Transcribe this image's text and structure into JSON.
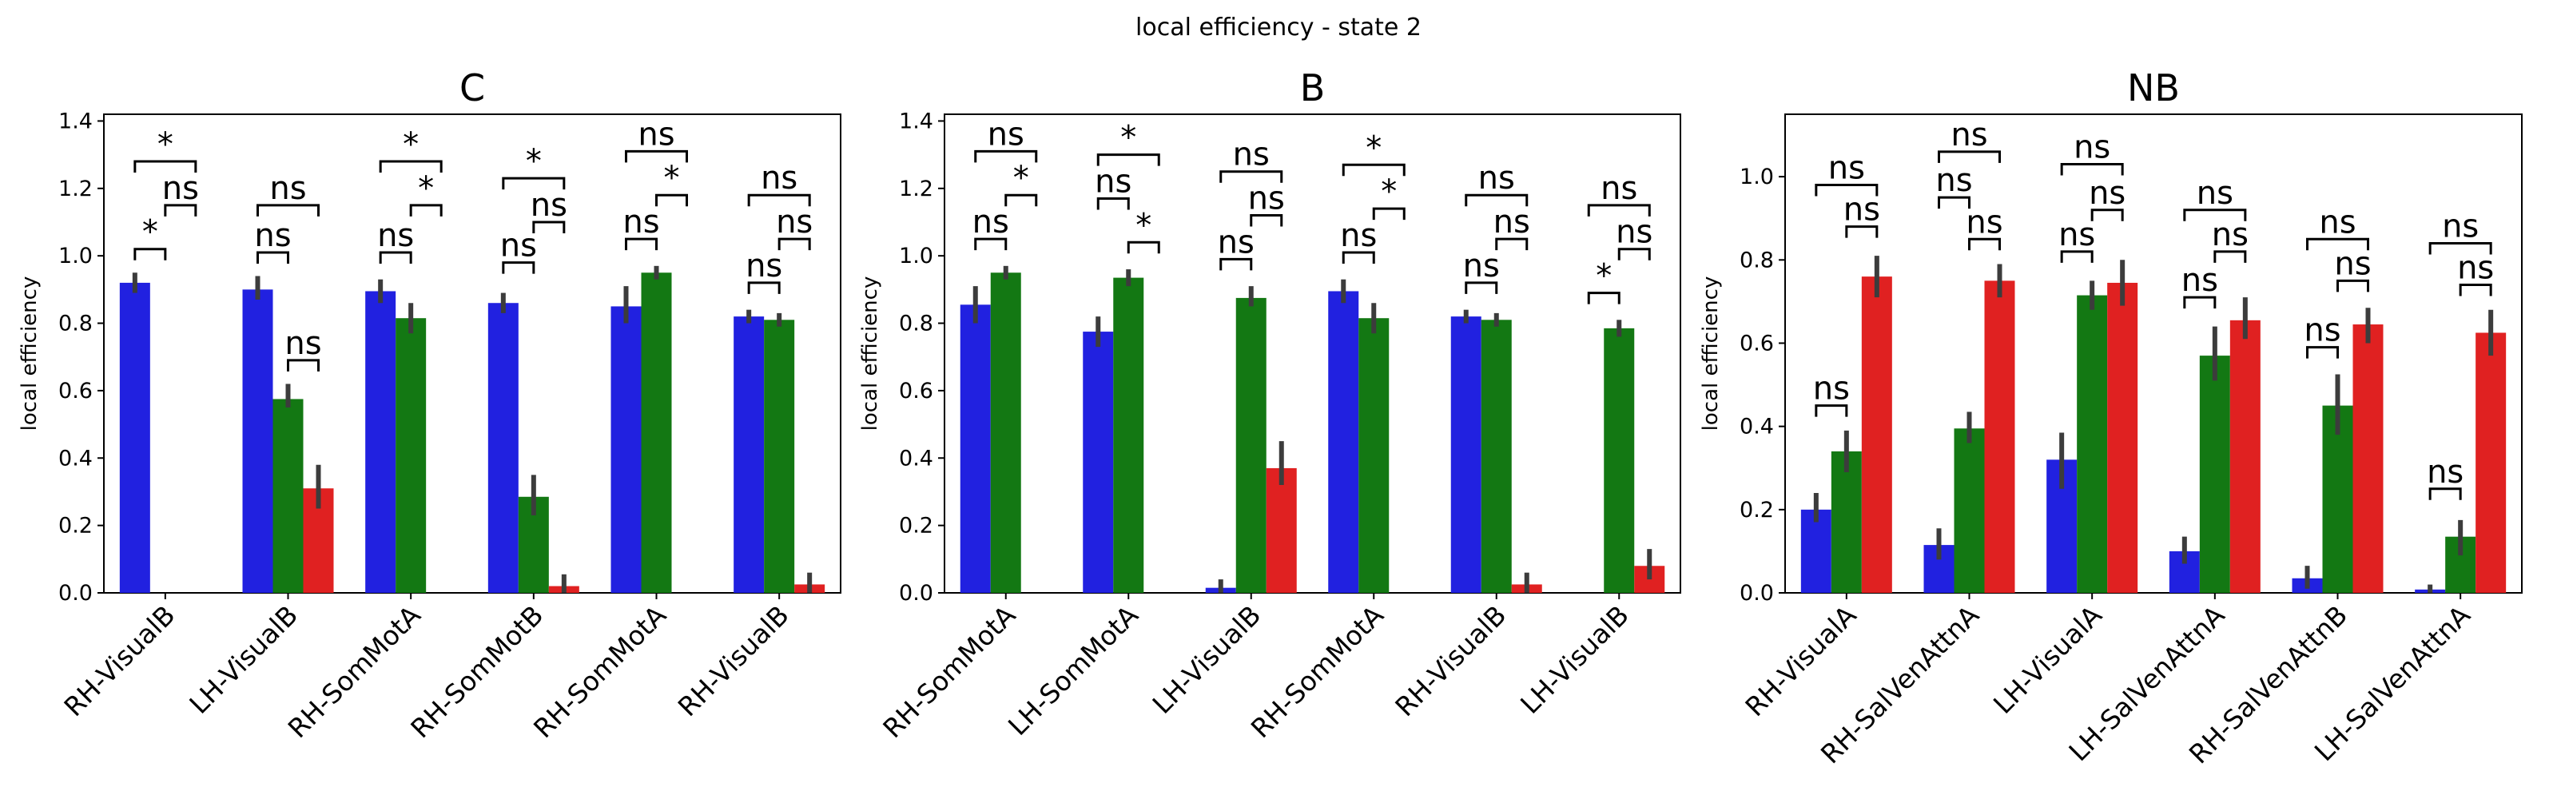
{
  "suptitle": "local efficiency - state 2",
  "colors": {
    "blue": "#2121e0",
    "green": "#137813",
    "red": "#e02121",
    "errbar": "#3c3c3c"
  },
  "chart_data": [
    {
      "type": "bar",
      "title": "C",
      "ylabel": "local efficiency",
      "xlabel": "",
      "ylim": [
        0,
        1.42
      ],
      "yticks": [
        "0.0",
        "0.2",
        "0.4",
        "0.6",
        "0.8",
        "1.0",
        "1.2",
        "1.4"
      ],
      "categories": [
        "RH-VisualB",
        "LH-VisualB",
        "RH-SomMotA",
        "RH-SomMotB",
        "RH-SomMotA",
        "RH-VisualB"
      ],
      "series": [
        {
          "color": "blue",
          "values": [
            0.92,
            0.9,
            0.895,
            0.86,
            0.85,
            0.82
          ],
          "err": [
            [
              0.89,
              0.95
            ],
            [
              0.87,
              0.94
            ],
            [
              0.86,
              0.93
            ],
            [
              0.83,
              0.89
            ],
            [
              0.8,
              0.91
            ],
            [
              0.8,
              0.84
            ]
          ]
        },
        {
          "color": "green",
          "values": [
            null,
            0.575,
            0.815,
            0.285,
            0.95,
            0.81
          ],
          "err": [
            null,
            [
              0.55,
              0.62
            ],
            [
              0.77,
              0.86
            ],
            [
              0.23,
              0.35
            ],
            [
              0.93,
              0.97
            ],
            [
              0.79,
              0.83
            ]
          ]
        },
        {
          "color": "red",
          "values": [
            null,
            0.31,
            null,
            0.02,
            null,
            0.025
          ],
          "err": [
            null,
            [
              0.25,
              0.38
            ],
            null,
            [
              0.0,
              0.055
            ],
            null,
            [
              0.0,
              0.06
            ]
          ]
        }
      ],
      "annotations": [
        {
          "cat": 0,
          "from": 0,
          "to": 1,
          "y": 1.02,
          "text": "*"
        },
        {
          "cat": 0,
          "from": 1,
          "to": 2,
          "y": 1.15,
          "text": "ns"
        },
        {
          "cat": 0,
          "from": 0,
          "to": 2,
          "y": 1.28,
          "text": "*"
        },
        {
          "cat": 1,
          "from": 0,
          "to": 1,
          "y": 1.01,
          "text": "ns"
        },
        {
          "cat": 1,
          "from": 1,
          "to": 2,
          "y": 0.69,
          "text": "ns"
        },
        {
          "cat": 1,
          "from": 0,
          "to": 2,
          "y": 1.15,
          "text": "ns"
        },
        {
          "cat": 2,
          "from": 0,
          "to": 1,
          "y": 1.01,
          "text": "ns"
        },
        {
          "cat": 2,
          "from": 1,
          "to": 2,
          "y": 1.15,
          "text": "*"
        },
        {
          "cat": 2,
          "from": 0,
          "to": 2,
          "y": 1.28,
          "text": "*"
        },
        {
          "cat": 3,
          "from": 0,
          "to": 1,
          "y": 0.98,
          "text": "ns"
        },
        {
          "cat": 3,
          "from": 1,
          "to": 2,
          "y": 1.1,
          "text": "ns"
        },
        {
          "cat": 3,
          "from": 0,
          "to": 2,
          "y": 1.23,
          "text": "*"
        },
        {
          "cat": 4,
          "from": 0,
          "to": 1,
          "y": 1.05,
          "text": "ns"
        },
        {
          "cat": 4,
          "from": 1,
          "to": 2,
          "y": 1.18,
          "text": "*"
        },
        {
          "cat": 4,
          "from": 0,
          "to": 2,
          "y": 1.31,
          "text": "ns"
        },
        {
          "cat": 5,
          "from": 0,
          "to": 1,
          "y": 0.92,
          "text": "ns"
        },
        {
          "cat": 5,
          "from": 1,
          "to": 2,
          "y": 1.05,
          "text": "ns"
        },
        {
          "cat": 5,
          "from": 0,
          "to": 2,
          "y": 1.18,
          "text": "ns"
        }
      ]
    },
    {
      "type": "bar",
      "title": "B",
      "ylabel": "local efficiency",
      "xlabel": "",
      "ylim": [
        0,
        1.42
      ],
      "yticks": [
        "0.0",
        "0.2",
        "0.4",
        "0.6",
        "0.8",
        "1.0",
        "1.2",
        "1.4"
      ],
      "categories": [
        "RH-SomMotA",
        "LH-SomMotA",
        "LH-VisualB",
        "RH-SomMotA",
        "RH-VisualB",
        "LH-VisualB"
      ],
      "series": [
        {
          "color": "blue",
          "values": [
            0.855,
            0.775,
            0.015,
            0.895,
            0.82,
            null
          ],
          "err": [
            [
              0.8,
              0.91
            ],
            [
              0.73,
              0.82
            ],
            [
              0.0,
              0.04
            ],
            [
              0.86,
              0.93
            ],
            [
              0.8,
              0.84
            ],
            null
          ]
        },
        {
          "color": "green",
          "values": [
            0.95,
            0.935,
            0.875,
            0.815,
            0.81,
            0.785
          ],
          "err": [
            [
              0.93,
              0.97
            ],
            [
              0.91,
              0.96
            ],
            [
              0.85,
              0.91
            ],
            [
              0.77,
              0.86
            ],
            [
              0.79,
              0.83
            ],
            [
              0.76,
              0.81
            ]
          ]
        },
        {
          "color": "red",
          "values": [
            null,
            null,
            0.37,
            null,
            0.025,
            0.08
          ],
          "err": [
            null,
            null,
            [
              0.32,
              0.45
            ],
            null,
            [
              0.0,
              0.06
            ],
            [
              0.04,
              0.13
            ]
          ]
        }
      ],
      "annotations": [
        {
          "cat": 0,
          "from": 0,
          "to": 1,
          "y": 1.05,
          "text": "ns"
        },
        {
          "cat": 0,
          "from": 1,
          "to": 2,
          "y": 1.18,
          "text": "*"
        },
        {
          "cat": 0,
          "from": 0,
          "to": 2,
          "y": 1.31,
          "text": "ns"
        },
        {
          "cat": 1,
          "from": 0,
          "to": 1,
          "y": 1.17,
          "text": "ns"
        },
        {
          "cat": 1,
          "from": 1,
          "to": 2,
          "y": 1.04,
          "text": "*"
        },
        {
          "cat": 1,
          "from": 0,
          "to": 2,
          "y": 1.3,
          "text": "*"
        },
        {
          "cat": 2,
          "from": 0,
          "to": 1,
          "y": 0.99,
          "text": "ns"
        },
        {
          "cat": 2,
          "from": 1,
          "to": 2,
          "y": 1.12,
          "text": "ns"
        },
        {
          "cat": 2,
          "from": 0,
          "to": 2,
          "y": 1.25,
          "text": "ns"
        },
        {
          "cat": 3,
          "from": 0,
          "to": 1,
          "y": 1.01,
          "text": "ns"
        },
        {
          "cat": 3,
          "from": 1,
          "to": 2,
          "y": 1.14,
          "text": "*"
        },
        {
          "cat": 3,
          "from": 0,
          "to": 2,
          "y": 1.27,
          "text": "*"
        },
        {
          "cat": 4,
          "from": 0,
          "to": 1,
          "y": 0.92,
          "text": "ns"
        },
        {
          "cat": 4,
          "from": 1,
          "to": 2,
          "y": 1.05,
          "text": "ns"
        },
        {
          "cat": 4,
          "from": 0,
          "to": 2,
          "y": 1.18,
          "text": "ns"
        },
        {
          "cat": 5,
          "from": 0,
          "to": 1,
          "y": 0.89,
          "text": "*"
        },
        {
          "cat": 5,
          "from": 1,
          "to": 2,
          "y": 1.02,
          "text": "ns"
        },
        {
          "cat": 5,
          "from": 0,
          "to": 2,
          "y": 1.15,
          "text": "ns"
        }
      ]
    },
    {
      "type": "bar",
      "title": "NB",
      "ylabel": "local efficiency",
      "xlabel": "",
      "ylim": [
        0,
        1.15
      ],
      "yticks": [
        "0.0",
        "0.2",
        "0.4",
        "0.6",
        "0.8",
        "1.0"
      ],
      "categories": [
        "RH-VisualA",
        "RH-SalVenAttnA",
        "LH-VisualA",
        "LH-SalVenAttnA",
        "RH-SalVenAttnB",
        "LH-SalVenAttnA"
      ],
      "series": [
        {
          "color": "blue",
          "values": [
            0.2,
            0.115,
            0.32,
            0.1,
            0.035,
            0.008
          ],
          "err": [
            [
              0.17,
              0.24
            ],
            [
              0.08,
              0.155
            ],
            [
              0.25,
              0.385
            ],
            [
              0.07,
              0.135
            ],
            [
              0.01,
              0.065
            ],
            [
              0.0,
              0.02
            ]
          ]
        },
        {
          "color": "green",
          "values": [
            0.34,
            0.395,
            0.715,
            0.57,
            0.45,
            0.135
          ],
          "err": [
            [
              0.29,
              0.39
            ],
            [
              0.36,
              0.435
            ],
            [
              0.68,
              0.75
            ],
            [
              0.51,
              0.64
            ],
            [
              0.38,
              0.525
            ],
            [
              0.09,
              0.175
            ]
          ]
        },
        {
          "color": "red",
          "values": [
            0.76,
            0.75,
            0.745,
            0.655,
            0.645,
            0.625
          ],
          "err": [
            [
              0.71,
              0.81
            ],
            [
              0.71,
              0.79
            ],
            [
              0.69,
              0.8
            ],
            [
              0.61,
              0.71
            ],
            [
              0.6,
              0.685
            ],
            [
              0.57,
              0.68
            ]
          ]
        }
      ],
      "annotations": [
        {
          "cat": 0,
          "from": 0,
          "to": 1,
          "y": 0.45,
          "text": "ns"
        },
        {
          "cat": 0,
          "from": 1,
          "to": 2,
          "y": 0.88,
          "text": "ns"
        },
        {
          "cat": 0,
          "from": 0,
          "to": 2,
          "y": 0.98,
          "text": "ns"
        },
        {
          "cat": 1,
          "from": 0,
          "to": 1,
          "y": 0.95,
          "text": "ns"
        },
        {
          "cat": 1,
          "from": 1,
          "to": 2,
          "y": 0.85,
          "text": "ns"
        },
        {
          "cat": 1,
          "from": 0,
          "to": 2,
          "y": 1.06,
          "text": "ns"
        },
        {
          "cat": 2,
          "from": 0,
          "to": 1,
          "y": 0.82,
          "text": "ns"
        },
        {
          "cat": 2,
          "from": 1,
          "to": 2,
          "y": 0.92,
          "text": "ns"
        },
        {
          "cat": 2,
          "from": 0,
          "to": 2,
          "y": 1.03,
          "text": "ns"
        },
        {
          "cat": 3,
          "from": 0,
          "to": 1,
          "y": 0.71,
          "text": "ns"
        },
        {
          "cat": 3,
          "from": 1,
          "to": 2,
          "y": 0.82,
          "text": "ns"
        },
        {
          "cat": 3,
          "from": 0,
          "to": 2,
          "y": 0.92,
          "text": "ns"
        },
        {
          "cat": 4,
          "from": 0,
          "to": 1,
          "y": 0.59,
          "text": "ns"
        },
        {
          "cat": 4,
          "from": 1,
          "to": 2,
          "y": 0.75,
          "text": "ns"
        },
        {
          "cat": 4,
          "from": 0,
          "to": 2,
          "y": 0.85,
          "text": "ns"
        },
        {
          "cat": 5,
          "from": 0,
          "to": 1,
          "y": 0.25,
          "text": "ns"
        },
        {
          "cat": 5,
          "from": 1,
          "to": 2,
          "y": 0.74,
          "text": "ns"
        },
        {
          "cat": 5,
          "from": 0,
          "to": 2,
          "y": 0.84,
          "text": "ns"
        }
      ]
    }
  ]
}
